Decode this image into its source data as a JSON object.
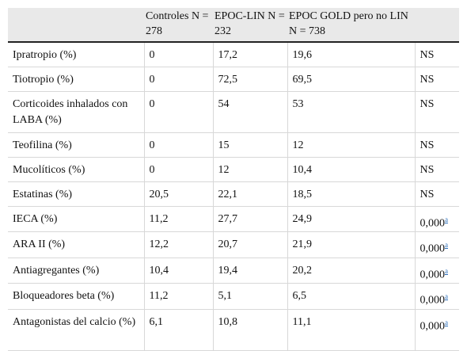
{
  "table": {
    "headers": [
      "",
      "Controles N = 278",
      "EPOC-LIN N = 232",
      "EPOC GOLD pero no LIN N = 738",
      ""
    ],
    "rows": [
      {
        "label": "Ipratropio (%)",
        "controles": "0",
        "epoc_lin": "17,2",
        "epoc_gold": "19,6",
        "p": "NS",
        "note": ""
      },
      {
        "label": "Tiotropio (%)",
        "controles": "0",
        "epoc_lin": "72,5",
        "epoc_gold": "69,5",
        "p": "NS",
        "note": ""
      },
      {
        "label": "Corticoides inhalados con LABA (%)",
        "controles": "0",
        "epoc_lin": "54",
        "epoc_gold": "53",
        "p": "NS",
        "note": ""
      },
      {
        "label": "Teofilina (%)",
        "controles": "0",
        "epoc_lin": "15",
        "epoc_gold": "12",
        "p": "NS",
        "note": ""
      },
      {
        "label": "Mucolíticos (%)",
        "controles": "0",
        "epoc_lin": "12",
        "epoc_gold": "10,4",
        "p": "NS",
        "note": ""
      },
      {
        "label": "Estatinas (%)",
        "controles": "20,5",
        "epoc_lin": "22,1",
        "epoc_gold": "18,5",
        "p": "NS",
        "note": ""
      },
      {
        "label": "IECA (%)",
        "controles": "11,2",
        "epoc_lin": "27,7",
        "epoc_gold": "24,9",
        "p": "0,000",
        "note": "a"
      },
      {
        "label": "ARA II (%)",
        "controles": "12,2",
        "epoc_lin": "20,7",
        "epoc_gold": "21,9",
        "p": "0,000",
        "note": "a"
      },
      {
        "label": "Antiagregantes (%)",
        "controles": "10,4",
        "epoc_lin": "19,4",
        "epoc_gold": "20,2",
        "p": "0,000",
        "note": "a"
      },
      {
        "label": "Bloqueadores beta (%)",
        "controles": "11,2",
        "epoc_lin": "5,1",
        "epoc_gold": "6,5",
        "p": "0,000",
        "note": "a"
      },
      {
        "label": "Antagonistas del calcio (%)",
        "controles": "6,1",
        "epoc_lin": "10,8",
        "epoc_gold": "11,1",
        "p": "0,000",
        "note": "a"
      }
    ]
  }
}
